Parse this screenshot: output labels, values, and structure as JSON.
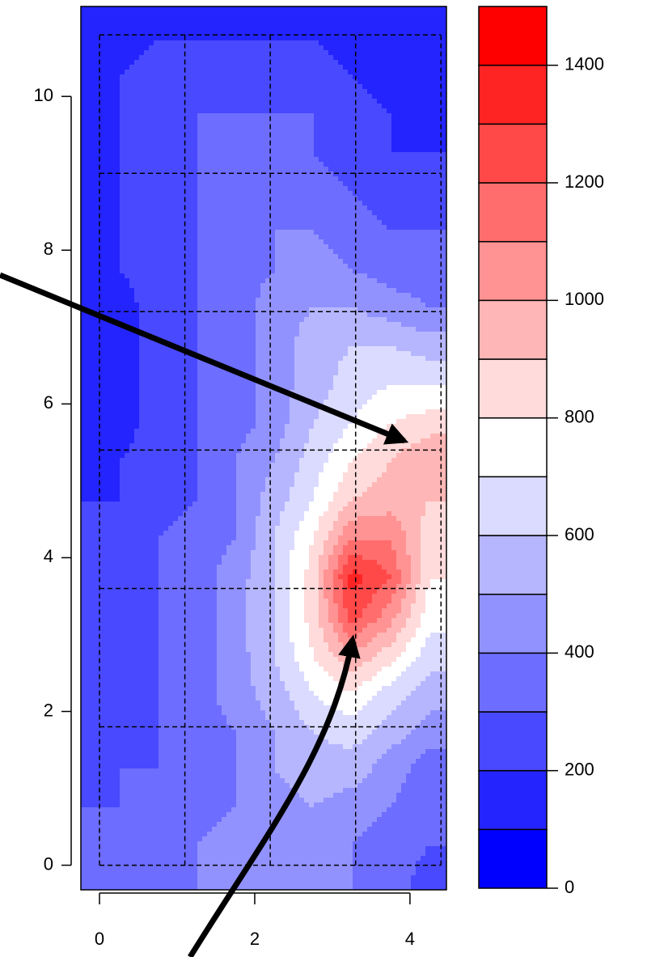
{
  "chart_data": {
    "type": "contour",
    "x": [
      -0.25,
      0.25,
      0.75,
      1.25,
      1.75,
      2.25,
      2.75,
      3.25,
      3.75,
      4.25
    ],
    "y": [
      11.25,
      10.75,
      10.25,
      9.75,
      9.25,
      8.75,
      8.25,
      7.75,
      7.25,
      6.75,
      6.25,
      5.75,
      5.25,
      4.75,
      4.25,
      3.75,
      3.25,
      2.75,
      2.25,
      1.75,
      1.25,
      0.75,
      0.25,
      -0.25
    ],
    "z": [
      [
        100,
        100,
        150,
        150,
        150,
        150,
        150,
        150,
        100,
        100
      ],
      [
        150,
        150,
        200,
        200,
        200,
        200,
        200,
        150,
        150,
        100
      ],
      [
        150,
        200,
        250,
        250,
        250,
        250,
        250,
        200,
        150,
        150
      ],
      [
        150,
        200,
        250,
        300,
        300,
        300,
        300,
        250,
        200,
        150
      ],
      [
        150,
        200,
        250,
        300,
        350,
        350,
        300,
        250,
        200,
        200
      ],
      [
        150,
        200,
        250,
        300,
        350,
        350,
        350,
        300,
        250,
        250
      ],
      [
        150,
        200,
        250,
        300,
        350,
        400,
        400,
        350,
        300,
        300
      ],
      [
        150,
        200,
        250,
        300,
        350,
        400,
        450,
        400,
        350,
        350
      ],
      [
        150,
        150,
        250,
        300,
        350,
        450,
        500,
        500,
        450,
        400
      ],
      [
        150,
        150,
        250,
        300,
        350,
        450,
        550,
        600,
        600,
        550
      ],
      [
        150,
        150,
        250,
        300,
        350,
        450,
        550,
        650,
        700,
        700
      ],
      [
        150,
        150,
        250,
        300,
        350,
        450,
        600,
        700,
        800,
        850
      ],
      [
        150,
        200,
        250,
        300,
        400,
        500,
        650,
        800,
        900,
        1000
      ],
      [
        200,
        200,
        250,
        300,
        400,
        550,
        700,
        900,
        950,
        900
      ],
      [
        200,
        250,
        300,
        350,
        400,
        600,
        800,
        1100,
        1100,
        850
      ],
      [
        250,
        250,
        300,
        350,
        450,
        600,
        850,
        1350,
        1200,
        800
      ],
      [
        250,
        250,
        300,
        350,
        450,
        600,
        850,
        1250,
        1050,
        750
      ],
      [
        250,
        250,
        300,
        350,
        450,
        600,
        800,
        1000,
        850,
        650
      ],
      [
        250,
        250,
        300,
        350,
        450,
        550,
        700,
        800,
        650,
        550
      ],
      [
        200,
        250,
        300,
        350,
        400,
        500,
        600,
        650,
        550,
        450
      ],
      [
        250,
        300,
        300,
        350,
        400,
        500,
        550,
        550,
        450,
        350
      ],
      [
        300,
        300,
        350,
        350,
        400,
        450,
        500,
        450,
        400,
        300
      ],
      [
        300,
        300,
        350,
        400,
        450,
        450,
        450,
        400,
        350,
        300
      ],
      [
        300,
        300,
        350,
        400,
        450,
        450,
        450,
        400,
        350,
        250
      ]
    ],
    "levels": [
      0,
      100,
      200,
      300,
      400,
      500,
      600,
      700,
      800,
      900,
      1000,
      1100,
      1200,
      1300,
      1400,
      1500
    ],
    "colors": [
      "#0000FF",
      "#2424FF",
      "#4949FF",
      "#6D6DFF",
      "#9292FF",
      "#B6B6FF",
      "#DBDBFF",
      "#FFFFFF",
      "#FFDBDB",
      "#FFB6B6",
      "#FF9292",
      "#FF6D6D",
      "#FF4949",
      "#FF2424",
      "#FF0000"
    ],
    "xlim": [
      -0.24,
      4.47
    ],
    "ylim": [
      -0.32,
      11.17
    ],
    "xticks": [
      0,
      2,
      4
    ],
    "yticks": [
      0,
      2,
      4,
      6,
      8,
      10
    ],
    "zlim": [
      0,
      1500
    ],
    "zticks": [
      0,
      200,
      400,
      600,
      800,
      1000,
      1200,
      1400
    ],
    "dashed_grid": {
      "x": [
        0,
        1.1,
        2.2,
        3.3,
        4.4
      ],
      "y": [
        0,
        1.8,
        3.6,
        5.4,
        7.2,
        9.0,
        10.8
      ]
    }
  }
}
